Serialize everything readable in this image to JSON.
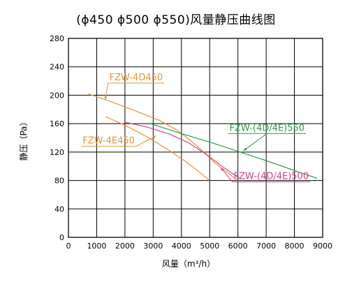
{
  "chart_data": {
    "type": "line",
    "title": "(ϕ450  ϕ500  ϕ550)风量静压曲线图",
    "xlabel": "风量（m³/h）",
    "ylabel": "静压（Pa）",
    "xlim": [
      0,
      9000
    ],
    "ylim": [
      0,
      280
    ],
    "x_ticks": [
      0,
      1000,
      2000,
      3000,
      4000,
      5000,
      6000,
      7000,
      8000,
      9000
    ],
    "y_ticks": [
      0,
      40,
      80,
      120,
      160,
      200,
      240,
      280
    ],
    "grid": true,
    "legend": "none",
    "series": [
      {
        "name": "FZW-4D450",
        "color": "#e8903a",
        "x": [
          700,
          1500,
          2500,
          3200,
          3800,
          4300,
          4800,
          5200,
          5600,
          6000
        ],
        "y": [
          202,
          191,
          176,
          165,
          152,
          137,
          120,
          104,
          92,
          80
        ],
        "label_pos": [
          1450,
          221
        ],
        "arrow_to": [
          1300,
          194
        ]
      },
      {
        "name": "FZW-4E450",
        "color": "#e8903a",
        "x": [
          1300,
          2000,
          2800,
          3500,
          4100,
          4600,
          5000
        ],
        "y": [
          170,
          158,
          141,
          124,
          108,
          93,
          80
        ],
        "label_pos": [
          500,
          132
        ],
        "arrow_to": [
          3100,
          143
        ]
      },
      {
        "name": "FZW-(4D/4E)550",
        "color": "#2e9a4a",
        "x": [
          2900,
          4000,
          5000,
          6000,
          7000,
          8000,
          8800
        ],
        "y": [
          160,
          146,
          134,
          121,
          108,
          94,
          83
        ],
        "label_pos": [
          5700,
          150
        ],
        "arrow_to": [
          6200,
          122
        ]
      },
      {
        "name": "FZW-(4D/4E)500",
        "color": "#d0408f",
        "x": [
          2000,
          2800,
          3600,
          4300,
          4900,
          5400,
          5800,
          6100
        ],
        "y": [
          162,
          155,
          145,
          132,
          116,
          101,
          90,
          82
        ],
        "label_pos": [
          5850,
          82
        ],
        "arrow_to": [
          5400,
          98
        ]
      }
    ]
  }
}
